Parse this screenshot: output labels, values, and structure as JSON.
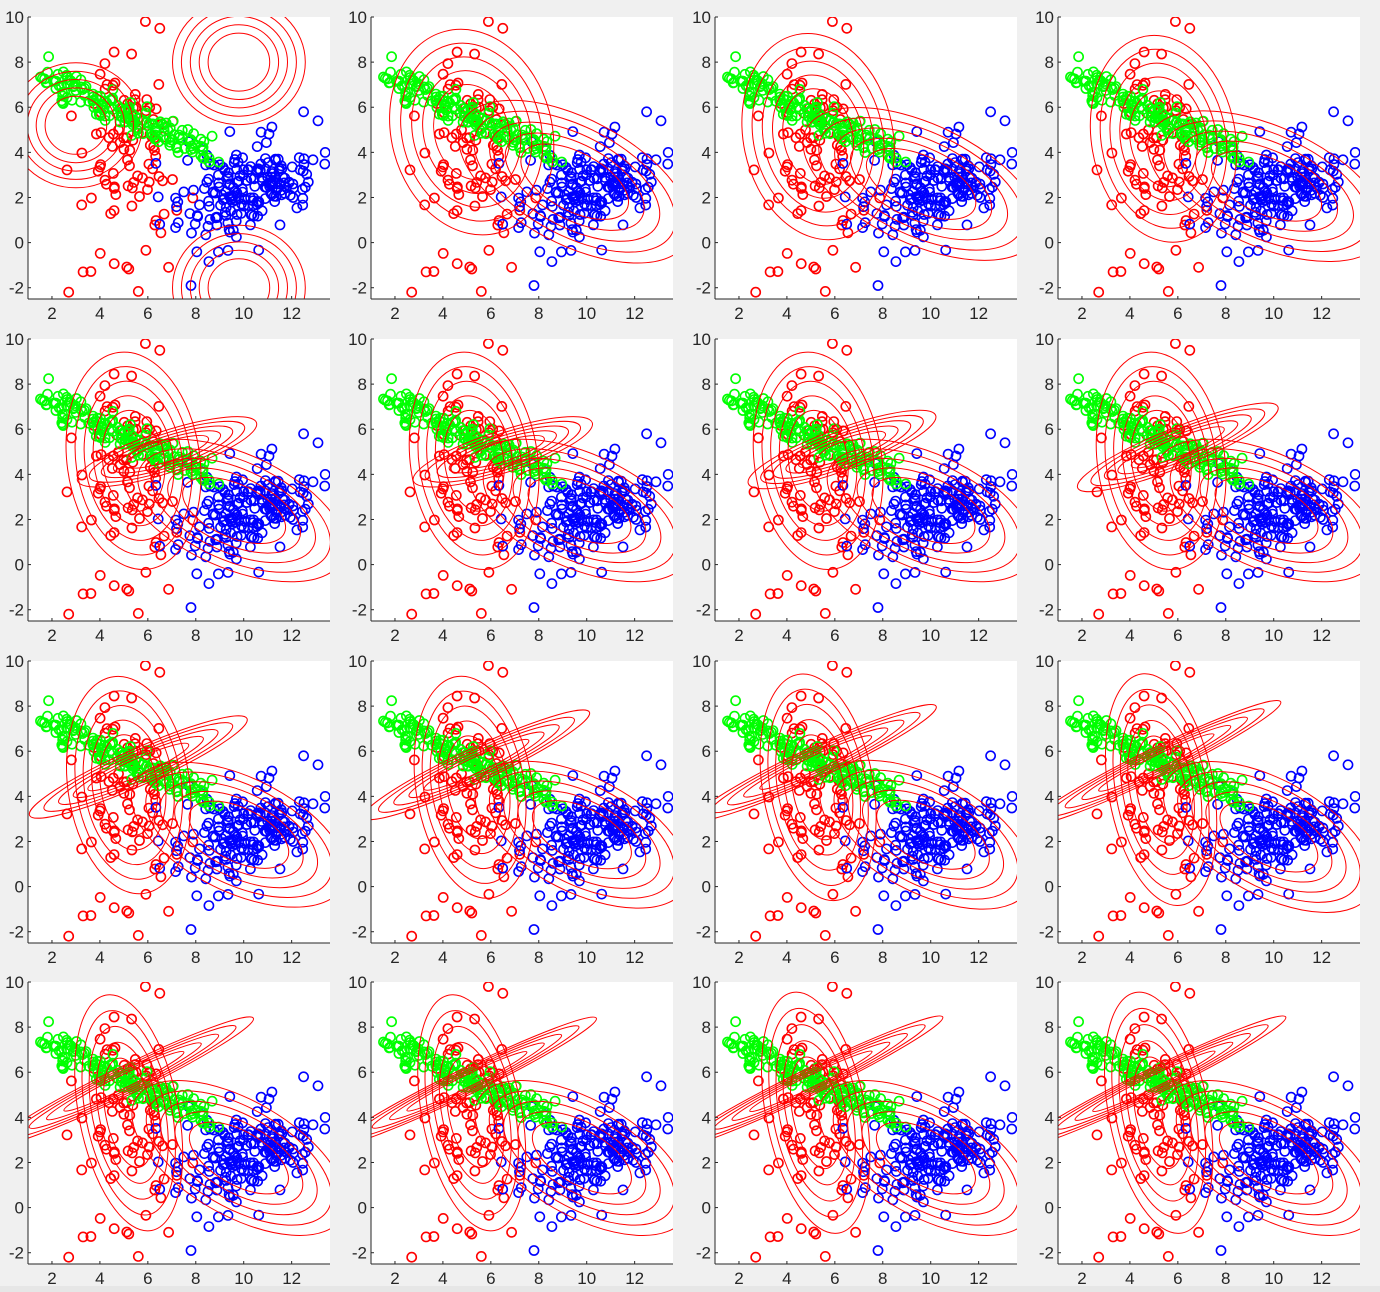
{
  "figure": {
    "description_colors": {
      "background": "#f0f0f0",
      "axes_background": "#ffffff",
      "axis_line": "#262626"
    }
  },
  "chart_data": {
    "type": "scatter",
    "layout": "4x4 grid of subplots",
    "xlim": [
      1,
      13.6
    ],
    "ylim": [
      -2.5,
      10
    ],
    "x_ticks": [
      "2",
      "4",
      "6",
      "8",
      "10",
      "12"
    ],
    "y_ticks": [
      "10",
      "8",
      "6",
      "4",
      "2",
      "0",
      "-2"
    ],
    "grid": false,
    "legend": "none",
    "marker": "open circle",
    "contour_color": "#ff0000",
    "series": [
      {
        "color": "#ff0000",
        "description": "cluster centered near (5.2, 4.2)"
      },
      {
        "color": "#00ff00",
        "description": "elongated cluster along line from (1.5, 7.2) to (8.5, 4.0)"
      },
      {
        "color": "#0000ff",
        "description": "cluster centered near (9.8, 2.4)"
      }
    ],
    "panels": [
      {
        "panel": 1,
        "gaussians": [
          {
            "mean": [
              3.0,
              5.2
            ],
            "sx": 2.4,
            "sy": 2.4,
            "angle": 0
          },
          {
            "mean": [
              9.8,
              8.0
            ],
            "sx": 2.4,
            "sy": 2.4,
            "angle": 0
          },
          {
            "mean": [
              9.8,
              -2.0
            ],
            "sx": 2.4,
            "sy": 2.4,
            "angle": 0
          }
        ]
      },
      {
        "panel": 2,
        "gaussians": [
          {
            "mean": [
              5.2,
              4.9
            ],
            "sx": 2.9,
            "sy": 4.0,
            "angle": -15
          },
          {
            "mean": [
              9.5,
              2.7
            ],
            "sx": 4.6,
            "sy": 2.4,
            "angle": 28
          }
        ]
      },
      {
        "panel": 3,
        "gaussians": [
          {
            "mean": [
              5.3,
              4.7
            ],
            "sx": 2.7,
            "sy": 4.0,
            "angle": -12
          },
          {
            "mean": [
              9.6,
              2.6
            ],
            "sx": 4.6,
            "sy": 2.3,
            "angle": 25
          }
        ]
      },
      {
        "panel": 4,
        "gaussians": [
          {
            "mean": [
              5.4,
              4.6
            ],
            "sx": 2.6,
            "sy": 4.0,
            "angle": -10
          },
          {
            "mean": [
              9.7,
              2.5
            ],
            "sx": 4.6,
            "sy": 2.3,
            "angle": 24
          }
        ]
      },
      {
        "panel": 5,
        "gaussians": [
          {
            "mean": [
              5.4,
              4.6
            ],
            "sx": 2.4,
            "sy": 4.2,
            "angle": -8
          },
          {
            "mean": [
              9.6,
              2.4
            ],
            "sx": 4.3,
            "sy": 2.2,
            "angle": 24
          },
          {
            "mean": [
              6.8,
              5.0
            ],
            "sx": 3.4,
            "sy": 0.8,
            "angle": -18
          }
        ]
      },
      {
        "panel": 6,
        "gaussians": [
          {
            "mean": [
              5.3,
              4.6
            ],
            "sx": 2.3,
            "sy": 4.2,
            "angle": -8
          },
          {
            "mean": [
              9.7,
              2.4
            ],
            "sx": 4.3,
            "sy": 2.2,
            "angle": 24
          },
          {
            "mean": [
              6.5,
              5.0
            ],
            "sx": 3.4,
            "sy": 0.8,
            "angle": -18
          }
        ]
      },
      {
        "panel": 7,
        "gaussians": [
          {
            "mean": [
              5.3,
              4.6
            ],
            "sx": 2.3,
            "sy": 4.2,
            "angle": -8
          },
          {
            "mean": [
              9.7,
              2.4
            ],
            "sx": 4.3,
            "sy": 2.2,
            "angle": 24
          },
          {
            "mean": [
              6.3,
              5.1
            ],
            "sx": 3.6,
            "sy": 0.8,
            "angle": -20
          }
        ]
      },
      {
        "panel": 8,
        "gaussians": [
          {
            "mean": [
              5.3,
              4.6
            ],
            "sx": 2.3,
            "sy": 4.2,
            "angle": -8
          },
          {
            "mean": [
              9.7,
              2.4
            ],
            "sx": 4.3,
            "sy": 2.2,
            "angle": 24
          },
          {
            "mean": [
              6.0,
              5.2
            ],
            "sx": 3.9,
            "sy": 0.75,
            "angle": -22
          }
        ]
      },
      {
        "panel": 9,
        "gaussians": [
          {
            "mean": [
              5.2,
              4.5
            ],
            "sx": 2.2,
            "sy": 4.2,
            "angle": -8
          },
          {
            "mean": [
              9.8,
              2.3
            ],
            "sx": 4.2,
            "sy": 2.2,
            "angle": 26
          },
          {
            "mean": [
              5.6,
              5.3
            ],
            "sx": 4.3,
            "sy": 0.7,
            "angle": -24
          }
        ]
      },
      {
        "panel": 10,
        "gaussians": [
          {
            "mean": [
              5.3,
              4.4
            ],
            "sx": 2.1,
            "sy": 4.3,
            "angle": -9
          },
          {
            "mean": [
              9.8,
              2.3
            ],
            "sx": 4.2,
            "sy": 2.2,
            "angle": 27
          },
          {
            "mean": [
              5.4,
              5.4
            ],
            "sx": 4.5,
            "sy": 0.65,
            "angle": -25
          }
        ]
      },
      {
        "panel": 11,
        "gaussians": [
          {
            "mean": [
              5.3,
              4.4
            ],
            "sx": 2.0,
            "sy": 4.4,
            "angle": -10
          },
          {
            "mean": [
              9.8,
              2.3
            ],
            "sx": 4.2,
            "sy": 2.2,
            "angle": 28
          },
          {
            "mean": [
              5.2,
              5.5
            ],
            "sx": 4.8,
            "sy": 0.6,
            "angle": -25
          }
        ]
      },
      {
        "panel": 12,
        "gaussians": [
          {
            "mean": [
              5.3,
              4.3
            ],
            "sx": 1.9,
            "sy": 4.5,
            "angle": -10
          },
          {
            "mean": [
              9.8,
              2.2
            ],
            "sx": 4.2,
            "sy": 2.2,
            "angle": 29
          },
          {
            "mean": [
              5.1,
              5.5
            ],
            "sx": 5.0,
            "sy": 0.55,
            "angle": -26
          }
        ]
      },
      {
        "panel": 13,
        "gaussians": [
          {
            "mean": [
              5.2,
              4.2
            ],
            "sx": 1.8,
            "sy": 4.6,
            "angle": -11
          },
          {
            "mean": [
              9.8,
              2.2
            ],
            "sx": 4.3,
            "sy": 2.2,
            "angle": 30
          },
          {
            "mean": [
              5.0,
              5.6
            ],
            "sx": 5.2,
            "sy": 0.55,
            "angle": -26
          }
        ]
      },
      {
        "panel": 14,
        "gaussians": [
          {
            "mean": [
              5.2,
              4.2
            ],
            "sx": 1.8,
            "sy": 4.6,
            "angle": -11
          },
          {
            "mean": [
              9.8,
              2.2
            ],
            "sx": 4.3,
            "sy": 2.2,
            "angle": 30
          },
          {
            "mean": [
              5.0,
              5.6
            ],
            "sx": 5.2,
            "sy": 0.5,
            "angle": -26
          }
        ]
      },
      {
        "panel": 15,
        "gaussians": [
          {
            "mean": [
              5.2,
              4.2
            ],
            "sx": 1.8,
            "sy": 4.7,
            "angle": -11
          },
          {
            "mean": [
              9.8,
              2.2
            ],
            "sx": 4.3,
            "sy": 2.2,
            "angle": 30
          },
          {
            "mean": [
              5.0,
              5.6
            ],
            "sx": 5.3,
            "sy": 0.5,
            "angle": -26
          }
        ]
      },
      {
        "panel": 16,
        "gaussians": [
          {
            "mean": [
              5.2,
              4.2
            ],
            "sx": 1.8,
            "sy": 4.7,
            "angle": -11
          },
          {
            "mean": [
              9.8,
              2.2
            ],
            "sx": 4.3,
            "sy": 2.2,
            "angle": 30
          },
          {
            "mean": [
              5.0,
              5.6
            ],
            "sx": 5.3,
            "sy": 0.5,
            "angle": -26
          }
        ]
      }
    ]
  }
}
